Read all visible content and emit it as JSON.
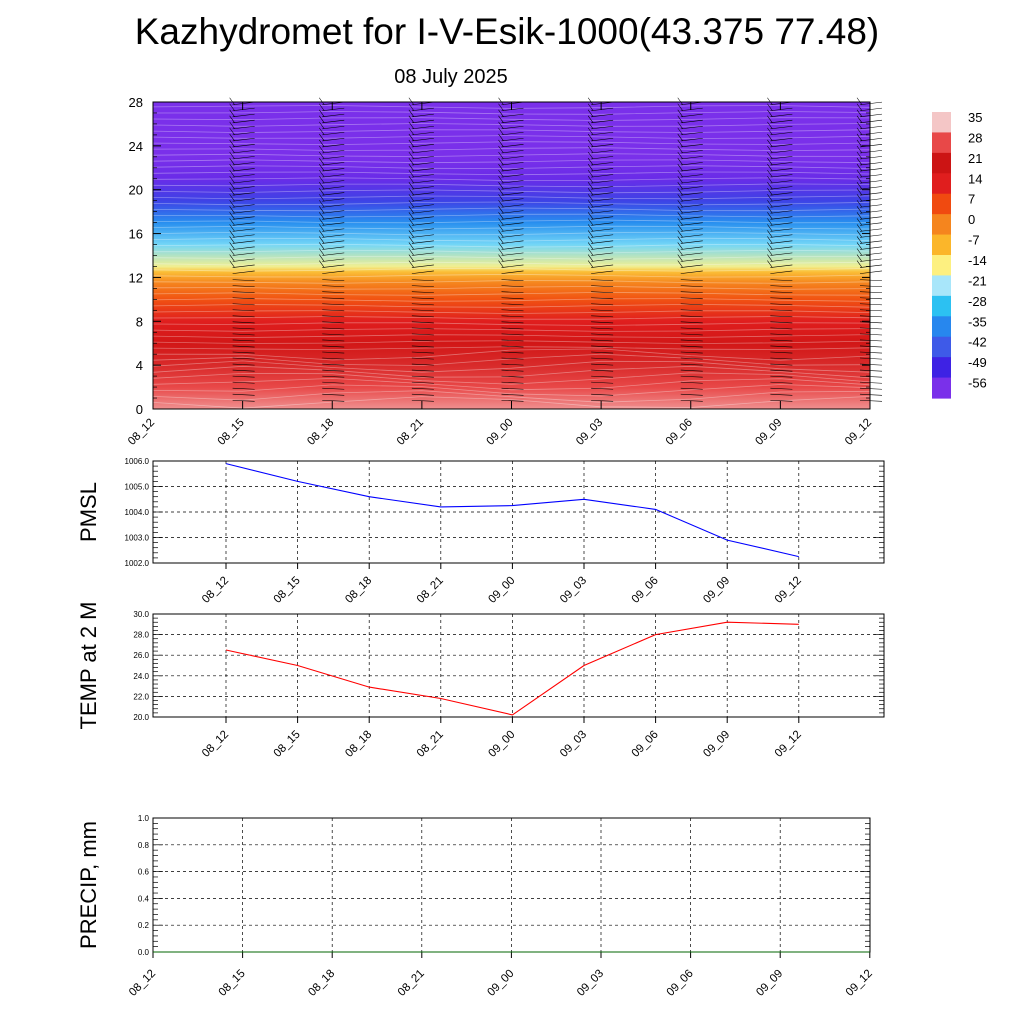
{
  "title": "Kazhydromet for I-V-Esik-1000(43.375 77.48)",
  "subtitle": "08 July 2025",
  "time_labels": [
    "08_12",
    "08_15",
    "08_18",
    "08_21",
    "09_00",
    "09_03",
    "09_06",
    "09_09",
    "09_12"
  ],
  "chart_data": [
    {
      "type": "heatmap",
      "xlabel": "",
      "ylabel": "",
      "x": [
        "08_12",
        "08_15",
        "08_18",
        "08_21",
        "09_00",
        "09_03",
        "09_06",
        "09_09",
        "09_12"
      ],
      "ylim": [
        0,
        28
      ],
      "yticks": [
        0,
        4,
        8,
        12,
        16,
        20,
        24,
        28
      ],
      "colorbar": {
        "labels": [
          "35",
          "28",
          "21",
          "14",
          "7",
          "0",
          "-7",
          "-14",
          "-21",
          "-28",
          "-35",
          "-42",
          "-49",
          "-56"
        ],
        "colors": [
          "#f4c6c6",
          "#e84848",
          "#cc1414",
          "#e01e1e",
          "#f04a10",
          "#f5851e",
          "#fbb62a",
          "#fdf080",
          "#a8e6fa",
          "#2cc1f2",
          "#2787ee",
          "#3e5ae8",
          "#3e22e4",
          "#7a30ea"
        ]
      },
      "temperature_profile": [
        {
          "height": 0,
          "value": 32
        },
        {
          "height": 2,
          "value": 28
        },
        {
          "height": 4,
          "value": 24
        },
        {
          "height": 6,
          "value": 19
        },
        {
          "height": 8,
          "value": 14
        },
        {
          "height": 10,
          "value": 6
        },
        {
          "height": 11.5,
          "value": 0
        },
        {
          "height": 12.5,
          "value": -8
        },
        {
          "height": 13,
          "value": -15
        },
        {
          "height": 15,
          "value": -24
        },
        {
          "height": 17,
          "value": -34
        },
        {
          "height": 19,
          "value": -45
        },
        {
          "height": 21,
          "value": -54
        },
        {
          "height": 23,
          "value": -58
        },
        {
          "height": 28,
          "value": -59
        }
      ],
      "wind_barbs": "black wind barbs at each time column on every level"
    },
    {
      "type": "line",
      "ylabel": "PMSL",
      "ylim": [
        1002.0,
        1006.0
      ],
      "yticks": [
        "1002.0",
        "1003.0",
        "1004.0",
        "1005.0",
        "1006.0"
      ],
      "x": [
        "08_12",
        "08_15",
        "08_18",
        "08_21",
        "09_00",
        "09_03",
        "09_06",
        "09_09",
        "09_12"
      ],
      "series": [
        {
          "values": [
            1005.9,
            1005.2,
            1004.6,
            1004.2,
            1004.25,
            1004.5,
            1004.1,
            1002.9,
            1002.25
          ],
          "color": "#0000ff"
        }
      ]
    },
    {
      "type": "line",
      "ylabel": "TEMP at 2 M",
      "ylim": [
        20.0,
        30.0
      ],
      "yticks": [
        "20.0",
        "22.0",
        "24.0",
        "26.0",
        "28.0",
        "30.0"
      ],
      "x": [
        "08_12",
        "08_15",
        "08_18",
        "08_21",
        "09_00",
        "09_03",
        "09_06",
        "09_09",
        "09_12"
      ],
      "series": [
        {
          "values": [
            26.5,
            25.0,
            22.9,
            21.8,
            20.2,
            25.0,
            28.0,
            29.2,
            29.0
          ],
          "color": "#ff0000"
        }
      ]
    },
    {
      "type": "line",
      "ylabel": "PRECIP, mm",
      "ylim": [
        0.0,
        1.0
      ],
      "yticks": [
        "0.0",
        "0.2",
        "0.4",
        "0.6",
        "0.8",
        "1.0"
      ],
      "x": [
        "08_12",
        "08_15",
        "08_18",
        "08_21",
        "09_00",
        "09_03",
        "09_06",
        "09_09",
        "09_12"
      ],
      "series": [
        {
          "values": [
            0,
            0,
            0,
            0,
            0,
            0,
            0,
            0,
            0
          ],
          "color": "#006400"
        }
      ]
    }
  ]
}
